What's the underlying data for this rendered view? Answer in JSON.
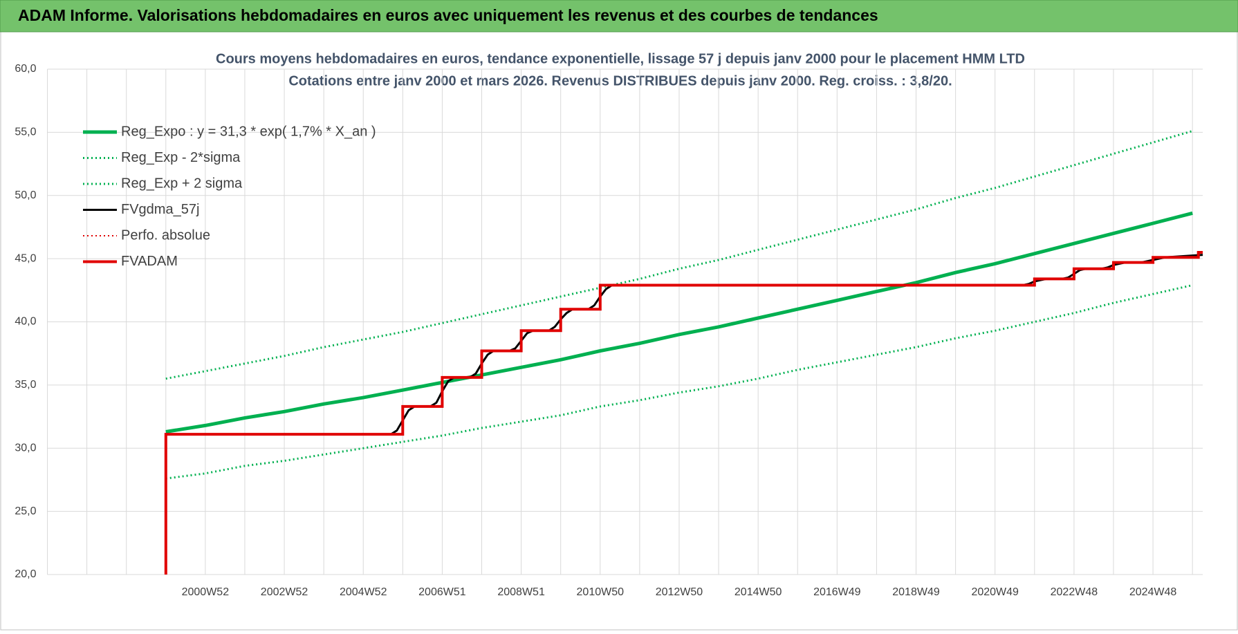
{
  "page_title": "ADAM Informe. Valorisations hebdomadaires en euros avec uniquement les revenus et des courbes de tendances",
  "chart_data": {
    "type": "line",
    "title": "Cours moyens hebdomadaires en euros, tendance exponentielle, lissage 57 j depuis janv 2000 pour le placement HMM LTD",
    "subtitle": "Cotations entre janv 2000 et mars 2026. Revenus DISTRIBUES depuis janv 2000. Reg. croiss. : 3,8/20.",
    "xlim": [
      1997,
      2026.26
    ],
    "ylim": [
      20,
      60
    ],
    "yticks": [
      {
        "value": 20,
        "label": "20,0"
      },
      {
        "value": 25,
        "label": "25,0"
      },
      {
        "value": 30,
        "label": "30,0"
      },
      {
        "value": 35,
        "label": "35,0"
      },
      {
        "value": 40,
        "label": "40,0"
      },
      {
        "value": 45,
        "label": "45,0"
      },
      {
        "value": 50,
        "label": "50,0"
      },
      {
        "value": 55,
        "label": "55,0"
      },
      {
        "value": 60,
        "label": "60,0"
      }
    ],
    "xticks": [
      {
        "value": 1998,
        "label": null
      },
      {
        "value": 1999,
        "label": null
      },
      {
        "value": 2000,
        "label": null
      },
      {
        "value": 2001,
        "label": "2000W52"
      },
      {
        "value": 2002,
        "label": null
      },
      {
        "value": 2003,
        "label": "2002W52"
      },
      {
        "value": 2004,
        "label": null
      },
      {
        "value": 2005,
        "label": "2004W52"
      },
      {
        "value": 2006,
        "label": null
      },
      {
        "value": 2007,
        "label": "2006W51"
      },
      {
        "value": 2008,
        "label": null
      },
      {
        "value": 2009,
        "label": "2008W51"
      },
      {
        "value": 2010,
        "label": null
      },
      {
        "value": 2011,
        "label": "2010W50"
      },
      {
        "value": 2012,
        "label": null
      },
      {
        "value": 2013,
        "label": "2012W50"
      },
      {
        "value": 2014,
        "label": null
      },
      {
        "value": 2015,
        "label": "2014W50"
      },
      {
        "value": 2016,
        "label": null
      },
      {
        "value": 2017,
        "label": "2016W49"
      },
      {
        "value": 2018,
        "label": null
      },
      {
        "value": 2019,
        "label": "2018W49"
      },
      {
        "value": 2020,
        "label": null
      },
      {
        "value": 2021,
        "label": "2020W49"
      },
      {
        "value": 2022,
        "label": null
      },
      {
        "value": 2023,
        "label": "2022W48"
      },
      {
        "value": 2024,
        "label": null
      },
      {
        "value": 2025,
        "label": "2024W48"
      },
      {
        "value": 2026,
        "label": null
      }
    ],
    "grid": true,
    "legend": "upper-left",
    "x": [
      2000,
      2001,
      2002,
      2003,
      2004,
      2005,
      2006,
      2007,
      2008,
      2009,
      2010,
      2011,
      2012,
      2013,
      2014,
      2015,
      2016,
      2017,
      2018,
      2019,
      2020,
      2021,
      2022,
      2023,
      2024,
      2025,
      2026
    ],
    "series": [
      {
        "name": "Reg_Expo : y = 31,3 * exp( 1,7% *  X_an )",
        "color": "#00b050",
        "dash": "solid",
        "line_width": 5,
        "values": [
          31.3,
          31.8,
          32.4,
          32.9,
          33.5,
          34.0,
          34.6,
          35.2,
          35.8,
          36.4,
          37.0,
          37.7,
          38.3,
          39.0,
          39.6,
          40.3,
          41.0,
          41.7,
          42.4,
          43.1,
          43.9,
          44.6,
          45.4,
          46.2,
          47.0,
          47.8,
          48.6
        ]
      },
      {
        "name": "Reg_Exp - 2*sigma",
        "color": "#00b050",
        "dash": "dotted",
        "line_width": 3,
        "values": [
          27.6,
          28.0,
          28.6,
          29.0,
          29.5,
          30.0,
          30.5,
          31.0,
          31.6,
          32.1,
          32.6,
          33.3,
          33.8,
          34.4,
          34.9,
          35.5,
          36.2,
          36.8,
          37.4,
          38.0,
          38.7,
          39.3,
          40.0,
          40.7,
          41.5,
          42.2,
          42.9
        ]
      },
      {
        "name": "Reg_Exp + 2 sigma",
        "color": "#00b050",
        "dash": "dotted",
        "line_width": 3,
        "values": [
          35.5,
          36.1,
          36.7,
          37.3,
          38.0,
          38.6,
          39.2,
          39.9,
          40.6,
          41.3,
          42.0,
          42.7,
          43.4,
          44.2,
          44.9,
          45.7,
          46.5,
          47.3,
          48.1,
          48.9,
          49.8,
          50.6,
          51.5,
          52.4,
          53.3,
          54.2,
          55.1
        ]
      },
      {
        "name": "FVgdma_57j",
        "color": "#000000",
        "dash": "solid",
        "line_width": 3,
        "x": [
          2000,
          2005.7,
          2005.85,
          2006,
          2006.15,
          2006.3,
          2006.7,
          2006.85,
          2007,
          2007.15,
          2007.3,
          2007.7,
          2007.85,
          2008,
          2008.15,
          2008.3,
          2008.7,
          2008.85,
          2009,
          2009.15,
          2009.3,
          2009.7,
          2009.85,
          2010,
          2010.15,
          2010.3,
          2010.7,
          2010.85,
          2011,
          2011.15,
          2011.3,
          2021.7,
          2021.85,
          2022,
          2022.15,
          2022.3,
          2022.7,
          2022.85,
          2023,
          2023.15,
          2023.3,
          2023.7,
          2023.85,
          2024,
          2024.15,
          2024.3,
          2024.7,
          2024.85,
          2025,
          2025.15,
          2025.3,
          2026.26
        ],
        "values": [
          31.1,
          31.1,
          31.4,
          32.2,
          33.0,
          33.3,
          33.3,
          33.6,
          34.5,
          35.3,
          35.6,
          35.6,
          35.9,
          36.7,
          37.4,
          37.7,
          37.7,
          37.9,
          38.5,
          39.1,
          39.3,
          39.3,
          39.6,
          40.2,
          40.7,
          41.0,
          41.0,
          41.3,
          42.0,
          42.6,
          42.9,
          42.9,
          43.0,
          43.2,
          43.3,
          43.4,
          43.4,
          43.5,
          43.8,
          44.1,
          44.2,
          44.2,
          44.3,
          44.5,
          44.6,
          44.7,
          44.7,
          44.8,
          44.9,
          45.0,
          45.1,
          45.3
        ]
      },
      {
        "name": "Perfo. absolue",
        "color": "#e00000",
        "dash": "dotted",
        "line_width": 2,
        "x": [],
        "values": []
      },
      {
        "name": "FVADAM",
        "color": "#e00000",
        "dash": "solid",
        "line_width": 4,
        "x": [
          2000,
          2000,
          2006,
          2006,
          2007,
          2007,
          2008,
          2008,
          2009,
          2009,
          2010,
          2010,
          2011,
          2011,
          2022,
          2022,
          2023,
          2023,
          2024,
          2024,
          2025,
          2025,
          2026.15,
          2026.15,
          2026.26
        ],
        "values": [
          20,
          31.1,
          31.1,
          33.3,
          33.3,
          35.6,
          35.6,
          37.7,
          37.7,
          39.3,
          39.3,
          41.0,
          41.0,
          42.9,
          42.9,
          43.4,
          43.4,
          44.2,
          44.2,
          44.7,
          44.7,
          45.1,
          45.1,
          45.5,
          45.5
        ]
      }
    ]
  }
}
